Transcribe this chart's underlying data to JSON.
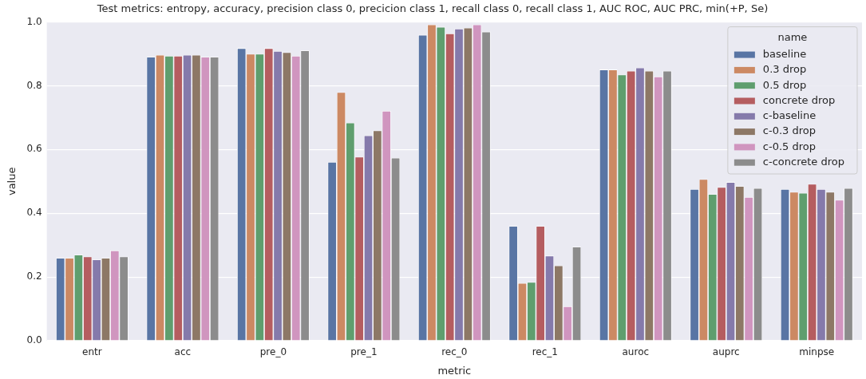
{
  "chart_data": {
    "type": "bar",
    "title": "Test metrics: entropy, accuracy, precision class 0, precicion class 1, recall class 0, recall class 1, AUC ROC, AUC PRC, min(+P, Se)",
    "xlabel": "metric",
    "ylabel": "value",
    "legend_title": "name",
    "categories": [
      "entr",
      "acc",
      "pre_0",
      "pre_1",
      "rec_0",
      "rec_1",
      "auroc",
      "auprc",
      "minpse"
    ],
    "series": [
      {
        "name": "baseline",
        "color": "#5975a4",
        "values": [
          0.26,
          0.891,
          0.918,
          0.561,
          0.96,
          0.36,
          0.851,
          0.476,
          0.476
        ]
      },
      {
        "name": "0.3 drop",
        "color": "#cc8963",
        "values": [
          0.26,
          0.897,
          0.9,
          0.78,
          0.992,
          0.181,
          0.851,
          0.507,
          0.467
        ]
      },
      {
        "name": "0.5 drop",
        "color": "#5f9e6e",
        "values": [
          0.27,
          0.894,
          0.9,
          0.684,
          0.985,
          0.184,
          0.835,
          0.46,
          0.464
        ]
      },
      {
        "name": "concrete drop",
        "color": "#b55d60",
        "values": [
          0.264,
          0.894,
          0.918,
          0.577,
          0.964,
          0.36,
          0.847,
          0.482,
          0.492
        ]
      },
      {
        "name": "c-baseline",
        "color": "#857aab",
        "values": [
          0.255,
          0.897,
          0.909,
          0.644,
          0.979,
          0.267,
          0.857,
          0.498,
          0.476
        ]
      },
      {
        "name": "c-0.3 drop",
        "color": "#8d7866",
        "values": [
          0.26,
          0.897,
          0.905,
          0.66,
          0.982,
          0.236,
          0.847,
          0.485,
          0.467
        ]
      },
      {
        "name": "c-0.5 drop",
        "color": "#d095bf",
        "values": [
          0.283,
          0.891,
          0.894,
          0.721,
          0.992,
          0.108,
          0.829,
          0.451,
          0.442
        ]
      },
      {
        "name": "c-concrete drop",
        "color": "#8c8c8c",
        "values": [
          0.264,
          0.891,
          0.911,
          0.574,
          0.97,
          0.295,
          0.847,
          0.479,
          0.479
        ]
      }
    ],
    "ylim": [
      0,
      1
    ],
    "yticks": [
      {
        "value": 0,
        "label": "0.0"
      },
      {
        "value": 0.2,
        "label": "0.2"
      },
      {
        "value": 0.4,
        "label": "0.4"
      },
      {
        "value": 0.6,
        "label": "0.6"
      },
      {
        "value": 0.8,
        "label": "0.8"
      },
      {
        "value": 1,
        "label": "1.0"
      }
    ],
    "grid": "y",
    "legend": "top right"
  }
}
